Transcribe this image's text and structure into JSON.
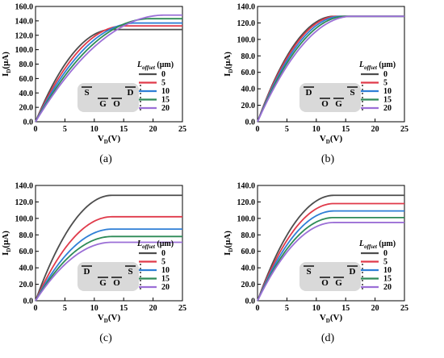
{
  "figure": {
    "legend_title": "L",
    "legend_title_sub": "offset",
    "legend_unit": " (μm)",
    "x_label_main": "V",
    "x_label_sub": "D",
    "x_label_unit": "(V)",
    "y_label_main": "I",
    "y_label_sub": "D",
    "y_label_unit": "(μA)",
    "colors": [
      "#4d4d4d",
      "#e03a4a",
      "#2f7fd6",
      "#2e8b57",
      "#9b6fd6"
    ]
  },
  "chart_data": [
    {
      "type": "line",
      "caption": "(a)",
      "device": [
        "S",
        "G",
        "O",
        "D"
      ],
      "xlim": [
        0,
        25
      ],
      "ylim": [
        0,
        160
      ],
      "x_ticks": [
        "0",
        "5",
        "10",
        "15",
        "20",
        "25"
      ],
      "y_ticks": [
        "0.0",
        "20.0",
        "40.0",
        "60.0",
        "80.0",
        "100.0",
        "120.0",
        "140.0",
        "160.0"
      ],
      "series": [
        {
          "name": "0",
          "sat": 128,
          "vsat": 13
        },
        {
          "name": "5",
          "sat": 133,
          "vsat": 15
        },
        {
          "name": "10",
          "sat": 137,
          "vsat": 17
        },
        {
          "name": "15",
          "sat": 143,
          "vsat": 19.5
        },
        {
          "name": "20",
          "sat": 148,
          "vsat": 22
        }
      ]
    },
    {
      "type": "line",
      "caption": "(b)",
      "device": [
        "D",
        "O",
        "G",
        "S"
      ],
      "xlim": [
        0,
        25
      ],
      "ylim": [
        0,
        140
      ],
      "x_ticks": [
        "0",
        "5",
        "10",
        "15",
        "20",
        "25"
      ],
      "y_ticks": [
        "0.0",
        "20.0",
        "40.0",
        "60.0",
        "80.0",
        "100.0",
        "120.0",
        "140.0"
      ],
      "series": [
        {
          "name": "0",
          "sat": 128,
          "vsat": 13
        },
        {
          "name": "5",
          "sat": 128,
          "vsat": 13.5
        },
        {
          "name": "10",
          "sat": 128,
          "vsat": 14.2
        },
        {
          "name": "15",
          "sat": 128,
          "vsat": 15
        },
        {
          "name": "20",
          "sat": 128,
          "vsat": 16
        }
      ]
    },
    {
      "type": "line",
      "caption": "(c)",
      "device": [
        "D",
        "G",
        "O",
        "S"
      ],
      "xlim": [
        0,
        25
      ],
      "ylim": [
        0,
        140
      ],
      "x_ticks": [
        "0",
        "5",
        "10",
        "15",
        "20",
        "25"
      ],
      "y_ticks": [
        "0.0",
        "20.0",
        "40.0",
        "60.0",
        "80.0",
        "100.0",
        "120.0",
        "140.0"
      ],
      "series": [
        {
          "name": "0",
          "sat": 128,
          "vsat": 13
        },
        {
          "name": "5",
          "sat": 102,
          "vsat": 13
        },
        {
          "name": "10",
          "sat": 87,
          "vsat": 13
        },
        {
          "name": "15",
          "sat": 78,
          "vsat": 13
        },
        {
          "name": "20",
          "sat": 71,
          "vsat": 13
        }
      ]
    },
    {
      "type": "line",
      "caption": "(d)",
      "device": [
        "S",
        "O",
        "G",
        "D"
      ],
      "xlim": [
        0,
        25
      ],
      "ylim": [
        0,
        140
      ],
      "x_ticks": [
        "0",
        "5",
        "10",
        "15",
        "20",
        "25"
      ],
      "y_ticks": [
        "0.0",
        "20.0",
        "40.0",
        "60.0",
        "80.0",
        "100.0",
        "120.0",
        "140.0"
      ],
      "series": [
        {
          "name": "0",
          "sat": 128,
          "vsat": 13
        },
        {
          "name": "5",
          "sat": 118,
          "vsat": 13
        },
        {
          "name": "10",
          "sat": 109,
          "vsat": 13
        },
        {
          "name": "15",
          "sat": 101,
          "vsat": 13
        },
        {
          "name": "20",
          "sat": 95,
          "vsat": 13
        }
      ]
    }
  ]
}
